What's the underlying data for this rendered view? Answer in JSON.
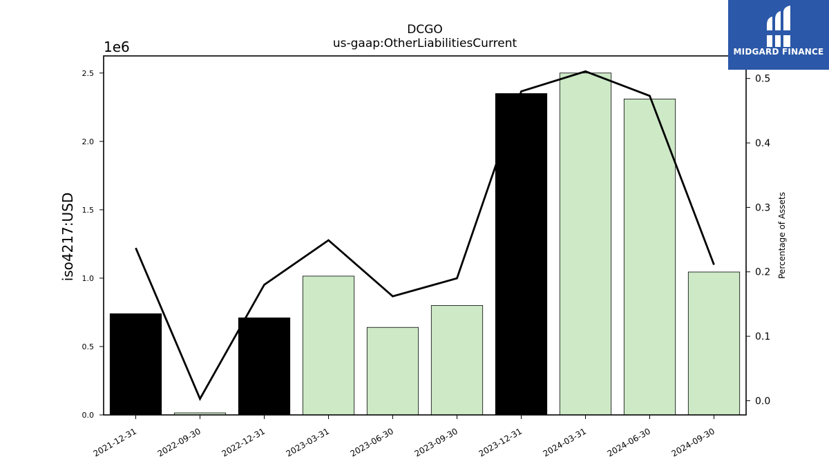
{
  "chart_data": {
    "type": "bar",
    "title": "DCGO",
    "subtitle": "us-gaap:OtherLiabilitiesCurrent",
    "ylabel": "iso4217:USD",
    "y_scale_label": "1e6",
    "y2label": "Percentage of Assets",
    "categories": [
      "2021-12-31",
      "2022-09-30",
      "2022-12-31",
      "2023-03-31",
      "2023-06-30",
      "2023-09-30",
      "2023-12-31",
      "2024-03-31",
      "2024-06-30",
      "2024-09-30"
    ],
    "series": [
      {
        "type": "bar",
        "values": [
          740000,
          15000,
          710000,
          1015000,
          640000,
          800000,
          2350000,
          2500000,
          2310000,
          1045000
        ],
        "colors": [
          "#000000",
          "#cde9c6",
          "#000000",
          "#cde9c6",
          "#cde9c6",
          "#cde9c6",
          "#000000",
          "#cde9c6",
          "#cde9c6",
          "#cde9c6"
        ]
      },
      {
        "type": "line",
        "axis": "right",
        "values": [
          0.237,
          0.003,
          0.18,
          0.249,
          0.162,
          0.19,
          0.48,
          0.511,
          0.473,
          0.211
        ],
        "color": "#000000"
      }
    ],
    "ylim": [
      0,
      2625000
    ],
    "y_ticks": [
      0,
      500000,
      1000000,
      1500000,
      2000000,
      2500000
    ],
    "y_tick_labels": [
      "0.0",
      "0.5",
      "1.0",
      "1.5",
      "2.0",
      "2.5"
    ],
    "y2lim": [
      -0.022,
      0.535
    ],
    "y2_ticks": [
      0.0,
      0.1,
      0.2,
      0.3,
      0.4,
      0.5
    ],
    "y2_tick_labels": [
      "0.0",
      "0.1",
      "0.2",
      "0.3",
      "0.4",
      "0.5"
    ],
    "grid": false,
    "legend": "none"
  },
  "logo": {
    "text": "MIDGARD FINANCE",
    "bg_color": "#2b58a8",
    "icon": "midgard-logo-icon"
  }
}
